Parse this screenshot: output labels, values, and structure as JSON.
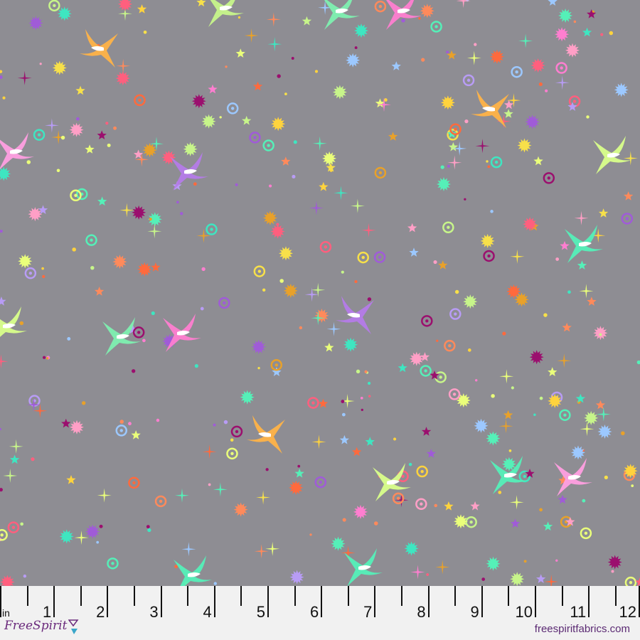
{
  "fabric": {
    "background_color": "#8e8d93",
    "palette": [
      "#f7e04a",
      "#ffd33d",
      "#ff8a5b",
      "#ff5f7e",
      "#ff7ed0",
      "#ff9fc6",
      "#a05bd8",
      "#b89cf5",
      "#9cc8ff",
      "#c7f58a",
      "#eaff7a",
      "#55f0b8",
      "#3ee6c1",
      "#9b0f6e",
      "#e8a12a",
      "#ff6a3d"
    ],
    "motifs": [
      "swallow",
      "star",
      "burst",
      "sparkle",
      "ring",
      "dot"
    ]
  },
  "ruler": {
    "unit_label": "in",
    "numbers": [
      "1",
      "2",
      "3",
      "4",
      "5",
      "6",
      "7",
      "8",
      "9",
      "10",
      "11",
      "12"
    ]
  },
  "footer": {
    "brand_logo": "FreeSpirit",
    "website": "freespiritfabrics.com"
  }
}
